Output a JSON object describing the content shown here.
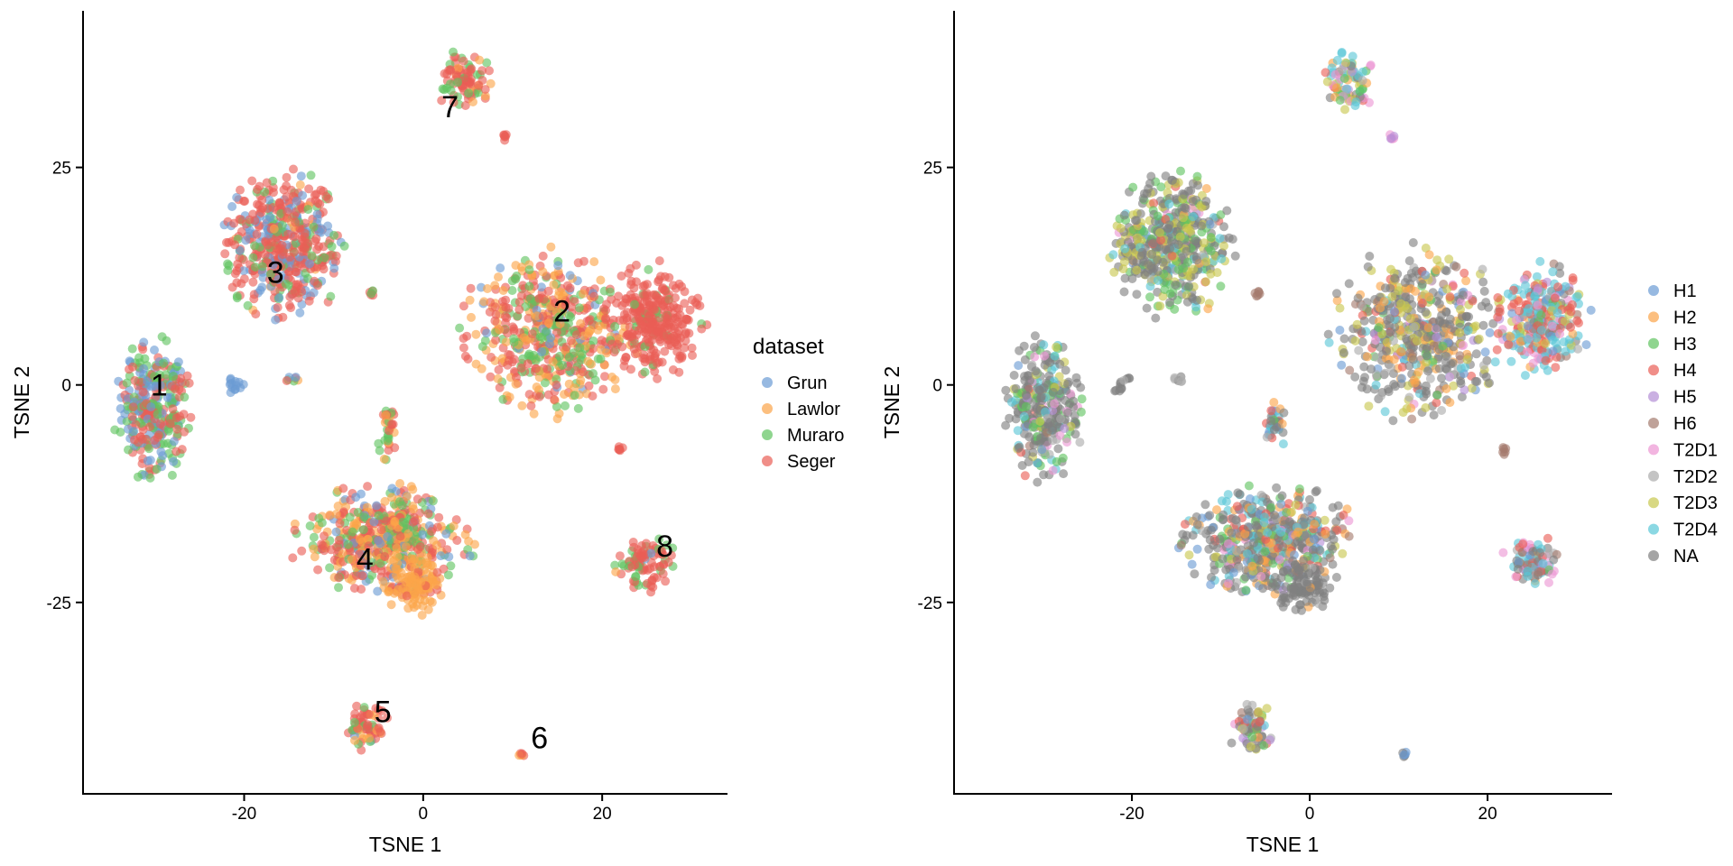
{
  "chart_data": [
    {
      "type": "scatter",
      "panel": "left",
      "xlabel": "TSNE 1",
      "ylabel": "TSNE 2",
      "xlim": [
        -38,
        34
      ],
      "ylim": [
        -47,
        43
      ],
      "x_ticks": [
        -20,
        0,
        20
      ],
      "y_ticks": [
        -25,
        0,
        25
      ],
      "x_tick_labels": [
        "-20",
        "0",
        "20"
      ],
      "y_tick_labels": [
        "-25",
        "0",
        "25"
      ],
      "grid": false,
      "legend": {
        "title": "dataset",
        "placement": "right",
        "entries": [
          {
            "label": "Grun",
            "color": "#6b9bd4"
          },
          {
            "label": "Lawlor",
            "color": "#fba449"
          },
          {
            "label": "Muraro",
            "color": "#60c35f"
          },
          {
            "label": "Seger",
            "color": "#ea5e55"
          }
        ]
      },
      "cluster_labels": [
        {
          "text": "1",
          "x": -29.5,
          "y": 0
        },
        {
          "text": "2",
          "x": 15.5,
          "y": 8.5
        },
        {
          "text": "3",
          "x": -16.5,
          "y": 13
        },
        {
          "text": "4",
          "x": -6.5,
          "y": -20
        },
        {
          "text": "5",
          "x": -4.5,
          "y": -37.5
        },
        {
          "text": "6",
          "x": 13,
          "y": -40.5
        },
        {
          "text": "7",
          "x": 3,
          "y": 32
        },
        {
          "text": "8",
          "x": 27,
          "y": -18.5
        }
      ],
      "clusters": [
        {
          "id": "1",
          "cx": -30,
          "cy": -2.5,
          "rx": 4.5,
          "ry": 8.5,
          "mix": [
            0.28,
            0.0,
            0.34,
            0.38
          ]
        },
        {
          "id": "2",
          "cx": 14,
          "cy": 6,
          "rx": 10,
          "ry": 10,
          "mix": [
            0.05,
            0.3,
            0.22,
            0.43
          ]
        },
        {
          "id": "2b",
          "cx": 26,
          "cy": 7.5,
          "rx": 5.5,
          "ry": 6.5,
          "mix": [
            0.0,
            0.0,
            0.08,
            0.92
          ]
        },
        {
          "id": "3",
          "cx": -15.5,
          "cy": 16,
          "rx": 7,
          "ry": 8.5,
          "mix": [
            0.22,
            0.03,
            0.2,
            0.55
          ]
        },
        {
          "id": "4",
          "cx": -4.5,
          "cy": -18,
          "rx": 10,
          "ry": 6.5,
          "mix": [
            0.12,
            0.32,
            0.2,
            0.36
          ]
        },
        {
          "id": "4b",
          "cx": -1,
          "cy": -23,
          "rx": 3.5,
          "ry": 3.5,
          "mix": [
            0.0,
            0.9,
            0.0,
            0.1
          ]
        },
        {
          "id": "5",
          "cx": -6.5,
          "cy": -39.5,
          "rx": 2.6,
          "ry": 3,
          "mix": [
            0.05,
            0.15,
            0.2,
            0.6
          ]
        },
        {
          "id": "6",
          "cx": 11,
          "cy": -42.5,
          "rx": 0.7,
          "ry": 0.4,
          "mix": [
            0.0,
            0.3,
            0.0,
            0.7
          ]
        },
        {
          "id": "7",
          "cx": 4.5,
          "cy": 35,
          "rx": 3,
          "ry": 3.5,
          "mix": [
            0.0,
            0.1,
            0.2,
            0.7
          ]
        },
        {
          "id": "8",
          "cx": 25,
          "cy": -20.5,
          "rx": 3.5,
          "ry": 3.2,
          "mix": [
            0.03,
            0.02,
            0.25,
            0.7
          ]
        },
        {
          "id": "s1",
          "cx": -4,
          "cy": -5,
          "rx": 1.2,
          "ry": 3.5,
          "mix": [
            0.0,
            0.2,
            0.2,
            0.6
          ]
        },
        {
          "id": "s2",
          "cx": -21,
          "cy": 0,
          "rx": 1.2,
          "ry": 1.3,
          "mix": [
            1.0,
            0.0,
            0.0,
            0.0
          ]
        },
        {
          "id": "s3",
          "cx": -15,
          "cy": 0.7,
          "rx": 2,
          "ry": 0.4,
          "mix": [
            0.2,
            0.4,
            0.2,
            0.2
          ]
        },
        {
          "id": "s4",
          "cx": -5.8,
          "cy": 10.5,
          "rx": 0.5,
          "ry": 0.5,
          "mix": [
            0.0,
            0.0,
            0.5,
            0.5
          ]
        },
        {
          "id": "s5",
          "cx": 9.2,
          "cy": 28.5,
          "rx": 0.4,
          "ry": 0.4,
          "mix": [
            0.0,
            0.5,
            0.0,
            0.5
          ]
        },
        {
          "id": "s6",
          "cx": 22,
          "cy": -7.5,
          "rx": 0.4,
          "ry": 0.8,
          "mix": [
            0.0,
            0.0,
            0.0,
            1.0
          ]
        }
      ]
    },
    {
      "type": "scatter",
      "panel": "right",
      "xlabel": "TSNE 1",
      "ylabel": "TSNE 2",
      "xlim": [
        -40,
        34
      ],
      "ylim": [
        -47,
        43
      ],
      "x_ticks": [
        -20,
        0,
        20
      ],
      "y_ticks": [
        -25,
        0,
        25
      ],
      "x_tick_labels": [
        "-20",
        "0",
        "20"
      ],
      "y_tick_labels": [
        "-25",
        "0",
        "25"
      ],
      "grid": false,
      "legend": {
        "title": "",
        "placement": "right",
        "entries": [
          {
            "label": "H1",
            "color": "#6b9bd4"
          },
          {
            "label": "H2",
            "color": "#fba449"
          },
          {
            "label": "H3",
            "color": "#60c35f"
          },
          {
            "label": "H4",
            "color": "#ea5e55"
          },
          {
            "label": "H5",
            "color": "#b48ed6"
          },
          {
            "label": "H6",
            "color": "#a47a6e"
          },
          {
            "label": "T2D1",
            "color": "#ec96d3"
          },
          {
            "label": "T2D2",
            "color": "#ababab"
          },
          {
            "label": "T2D3",
            "color": "#c8c74e"
          },
          {
            "label": "T2D4",
            "color": "#5ac7d7"
          },
          {
            "label": "NA",
            "color": "#7f7f7f"
          }
        ]
      },
      "clusters": [
        {
          "id": "1",
          "cx": -30,
          "cy": -2.5,
          "rx": 4.5,
          "ry": 8.5,
          "mix": [
            0.02,
            0.01,
            0.15,
            0.02,
            0.01,
            0.01,
            0.04,
            0.06,
            0.1,
            0.06,
            0.52
          ]
        },
        {
          "id": "2",
          "cx": 12,
          "cy": 6,
          "rx": 10,
          "ry": 10,
          "mix": [
            0.06,
            0.12,
            0.03,
            0.04,
            0.02,
            0.04,
            0.03,
            0.08,
            0.15,
            0.03,
            0.4
          ]
        },
        {
          "id": "2b",
          "cx": 26,
          "cy": 7.5,
          "rx": 5.5,
          "ry": 6.5,
          "mix": [
            0.05,
            0.04,
            0.02,
            0.3,
            0.02,
            0.05,
            0.1,
            0.04,
            0.05,
            0.3,
            0.03
          ]
        },
        {
          "id": "3",
          "cx": -15.5,
          "cy": 16,
          "rx": 7,
          "ry": 8.5,
          "mix": [
            0.02,
            0.01,
            0.18,
            0.02,
            0.0,
            0.0,
            0.02,
            0.02,
            0.25,
            0.08,
            0.4
          ]
        },
        {
          "id": "4",
          "cx": -4.5,
          "cy": -18,
          "rx": 10,
          "ry": 6.5,
          "mix": [
            0.06,
            0.12,
            0.08,
            0.08,
            0.01,
            0.03,
            0.03,
            0.04,
            0.05,
            0.1,
            0.4
          ]
        },
        {
          "id": "4b",
          "cx": -1,
          "cy": -23,
          "rx": 3.5,
          "ry": 3.5,
          "mix": [
            0.0,
            0.02,
            0.0,
            0.0,
            0.0,
            0.0,
            0.0,
            0.05,
            0.0,
            0.0,
            0.93
          ]
        },
        {
          "id": "5",
          "cx": -6.5,
          "cy": -39.5,
          "rx": 2.6,
          "ry": 3,
          "mix": [
            0.02,
            0.05,
            0.05,
            0.05,
            0.05,
            0.03,
            0.03,
            0.05,
            0.3,
            0.02,
            0.35
          ]
        },
        {
          "id": "6",
          "cx": 11,
          "cy": -42.5,
          "rx": 0.7,
          "ry": 0.4,
          "mix": [
            0.3,
            0.0,
            0.0,
            0.0,
            0.0,
            0.0,
            0.0,
            0.0,
            0.0,
            0.0,
            0.7
          ]
        },
        {
          "id": "7",
          "cx": 4.5,
          "cy": 35,
          "rx": 3,
          "ry": 3.5,
          "mix": [
            0.05,
            0.08,
            0.08,
            0.05,
            0.03,
            0.02,
            0.1,
            0.05,
            0.1,
            0.34,
            0.1
          ]
        },
        {
          "id": "8",
          "cx": 25,
          "cy": -20.5,
          "rx": 3.5,
          "ry": 3.2,
          "mix": [
            0.04,
            0.02,
            0.04,
            0.1,
            0.1,
            0.08,
            0.12,
            0.05,
            0.05,
            0.2,
            0.2
          ]
        },
        {
          "id": "s1",
          "cx": -4,
          "cy": -5,
          "rx": 1.2,
          "ry": 3.5,
          "mix": [
            0.1,
            0.05,
            0.1,
            0.1,
            0.0,
            0.0,
            0.0,
            0.1,
            0.0,
            0.3,
            0.25
          ]
        },
        {
          "id": "s2",
          "cx": -21,
          "cy": 0,
          "rx": 1.2,
          "ry": 1.3,
          "mix": [
            0.0,
            0.0,
            0.0,
            0.0,
            0.0,
            0.0,
            0.0,
            0.3,
            0.0,
            0.0,
            0.7
          ]
        },
        {
          "id": "s3",
          "cx": -15,
          "cy": 0.7,
          "rx": 2,
          "ry": 0.4,
          "mix": [
            0.0,
            0.0,
            0.0,
            0.2,
            0.0,
            0.0,
            0.0,
            0.4,
            0.0,
            0.0,
            0.4
          ]
        },
        {
          "id": "s4",
          "cx": -5.8,
          "cy": 10.5,
          "rx": 0.5,
          "ry": 0.5,
          "mix": [
            0.0,
            0.0,
            0.0,
            0.0,
            0.0,
            0.5,
            0.0,
            0.0,
            0.0,
            0.0,
            0.5
          ]
        },
        {
          "id": "s5",
          "cx": 9.2,
          "cy": 28.5,
          "rx": 0.4,
          "ry": 0.4,
          "mix": [
            0.0,
            0.0,
            0.0,
            0.0,
            0.6,
            0.0,
            0.4,
            0.0,
            0.0,
            0.0,
            0.0
          ]
        },
        {
          "id": "s6",
          "cx": 22,
          "cy": -7.5,
          "rx": 0.4,
          "ry": 0.8,
          "mix": [
            0.0,
            0.0,
            0.0,
            0.0,
            0.0,
            1.0,
            0.0,
            0.0,
            0.0,
            0.0,
            0.0
          ]
        }
      ]
    }
  ]
}
